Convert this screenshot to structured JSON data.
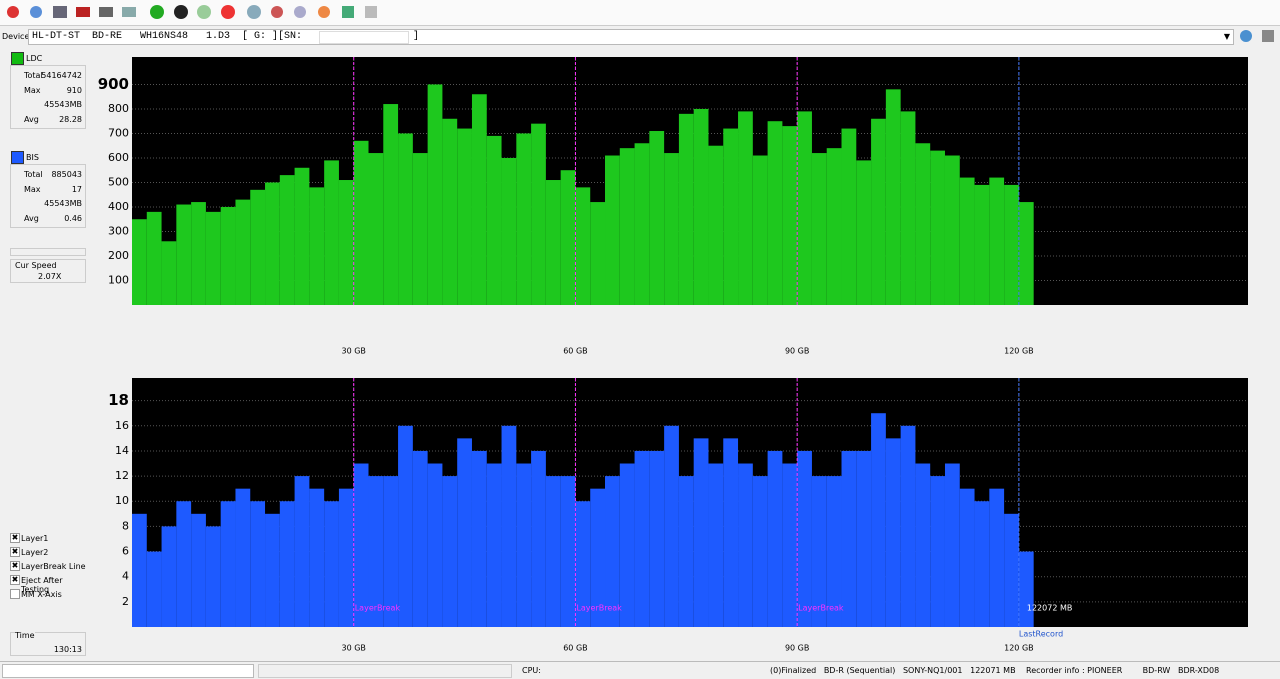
{
  "device": {
    "label": "Device:",
    "name": "HL-DT-ST  BD-RE   WH16NS48   1.D3  [ G: ][SN:",
    "close": "]"
  },
  "sidebar": {
    "ldc": {
      "name": "LDC",
      "rows": [
        [
          "Total",
          "54164742"
        ],
        [
          "Max",
          "910"
        ],
        [
          "",
          "45543MB"
        ],
        [
          "Avg",
          "28.28"
        ]
      ]
    },
    "bis": {
      "name": "BIS",
      "rows": [
        [
          "Total",
          "885043"
        ],
        [
          "Max",
          "17"
        ],
        [
          "",
          "45543MB"
        ],
        [
          "Avg",
          "0.46"
        ]
      ]
    },
    "speed": {
      "label": "Cur Speed",
      "value": "2.07X"
    },
    "options": [
      "Layer1",
      "Layer2",
      "LayerBreak Line",
      "Eject After Testing",
      "MM X-Axis"
    ],
    "time": {
      "label": "Time",
      "value": "130:13"
    }
  },
  "chart_data": [
    {
      "type": "bar",
      "xlim": [
        0,
        151
      ],
      "ylim": [
        0,
        1012
      ],
      "xticks": [
        {
          "value": 30,
          "label": "30 GB"
        },
        {
          "value": 60,
          "label": "60 GB"
        },
        {
          "value": 90,
          "label": "90 GB"
        },
        {
          "value": 120,
          "label": "120 GB"
        }
      ],
      "yticks": [
        100,
        200,
        300,
        400,
        500,
        600,
        700,
        800,
        900
      ],
      "layer_breaks": [
        30,
        60,
        90
      ],
      "last_record": 120,
      "series": [
        {
          "name": "LDC",
          "color": "#1ec81e",
          "x": [
            0,
            2,
            4,
            6,
            8,
            10,
            12,
            14,
            16,
            18,
            20,
            22,
            24,
            26,
            28,
            30,
            32,
            34,
            36,
            38,
            40,
            42,
            44,
            46,
            48,
            50,
            52,
            54,
            56,
            58,
            60,
            62,
            64,
            66,
            68,
            70,
            72,
            74,
            76,
            78,
            80,
            82,
            84,
            86,
            88,
            90,
            92,
            94,
            96,
            98,
            100,
            102,
            104,
            106,
            108,
            110,
            112,
            114,
            116,
            118,
            120
          ],
          "values": [
            350,
            380,
            260,
            410,
            420,
            380,
            400,
            430,
            470,
            500,
            530,
            560,
            480,
            590,
            510,
            670,
            620,
            820,
            700,
            620,
            900,
            760,
            720,
            860,
            690,
            600,
            700,
            740,
            510,
            550,
            480,
            420,
            610,
            640,
            660,
            710,
            620,
            780,
            800,
            650,
            720,
            790,
            610,
            750,
            730,
            790,
            620,
            640,
            720,
            590,
            760,
            880,
            790,
            660,
            630,
            610,
            520,
            490,
            520,
            490,
            420
          ]
        }
      ]
    },
    {
      "type": "bar",
      "xlim": [
        0,
        151
      ],
      "ylim": [
        0,
        19.8
      ],
      "xticks": [
        {
          "value": 30,
          "label": "30 GB"
        },
        {
          "value": 60,
          "label": "60 GB"
        },
        {
          "value": 90,
          "label": "90 GB"
        },
        {
          "value": 120,
          "label": "120 GB"
        }
      ],
      "yticks": [
        2,
        4,
        6,
        8,
        10,
        12,
        14,
        16,
        18
      ],
      "layer_breaks": [
        30,
        60,
        90
      ],
      "layer_break_label": "LayerBreak",
      "last_record": 120,
      "last_record_label": "LastRecord",
      "size_label": "122072 MB",
      "series": [
        {
          "name": "BIS",
          "color": "#1e5aff",
          "x": [
            0,
            2,
            4,
            6,
            8,
            10,
            12,
            14,
            16,
            18,
            20,
            22,
            24,
            26,
            28,
            30,
            32,
            34,
            36,
            38,
            40,
            42,
            44,
            46,
            48,
            50,
            52,
            54,
            56,
            58,
            60,
            62,
            64,
            66,
            68,
            70,
            72,
            74,
            76,
            78,
            80,
            82,
            84,
            86,
            88,
            90,
            92,
            94,
            96,
            98,
            100,
            102,
            104,
            106,
            108,
            110,
            112,
            114,
            116,
            118,
            120
          ],
          "values": [
            9,
            6,
            8,
            10,
            9,
            8,
            10,
            11,
            10,
            9,
            10,
            12,
            11,
            10,
            11,
            13,
            12,
            12,
            16,
            14,
            13,
            12,
            15,
            14,
            13,
            16,
            13,
            14,
            12,
            12,
            10,
            11,
            12,
            13,
            14,
            14,
            16,
            12,
            15,
            13,
            15,
            13,
            12,
            14,
            13,
            14,
            12,
            12,
            14,
            14,
            17,
            15,
            16,
            13,
            12,
            13,
            11,
            10,
            11,
            9,
            6
          ]
        }
      ]
    }
  ],
  "status": {
    "cpu": "CPU:",
    "disc": "(0)Finalized   BD-R (Sequential)   SONY-NQ1/001   122071 MB",
    "recorder": "Recorder info : PIONEER        BD-RW   BDR-XD08"
  }
}
